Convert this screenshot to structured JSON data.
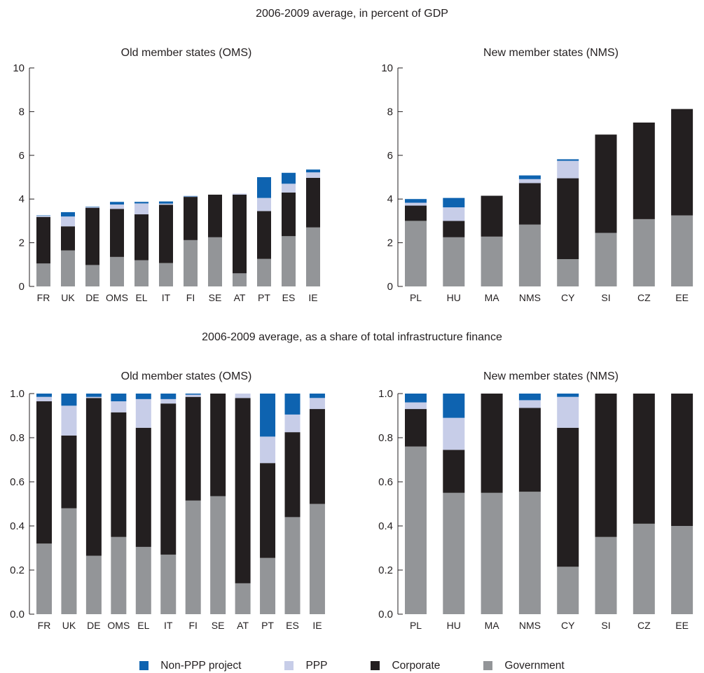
{
  "section_titles": {
    "top": "2006-2009 average, in percent of GDP",
    "bottom": "2006-2009 average, as a share of total infrastructure finance"
  },
  "series": [
    {
      "key": "government",
      "name": "Government",
      "color": "#939598"
    },
    {
      "key": "corporate",
      "name": "Corporate",
      "color": "#231f20"
    },
    {
      "key": "ppp",
      "name": "PPP",
      "color": "#c7cde8"
    },
    {
      "key": "nonppp",
      "name": "Non-PPP project",
      "color": "#0e63b0"
    }
  ],
  "legend_order": [
    "nonppp",
    "ppp",
    "corporate",
    "government"
  ],
  "chart_data": [
    {
      "type": "bar",
      "stacked": true,
      "title": "Old member states (OMS)",
      "ylim": [
        0,
        10
      ],
      "yticks": [
        "0",
        "2",
        "4",
        "6",
        "8",
        "10"
      ],
      "categories": [
        "FR",
        "UK",
        "DE",
        "OMS",
        "EL",
        "IT",
        "FI",
        "SE",
        "AT",
        "PT",
        "ES",
        "IE"
      ],
      "series": [
        {
          "name": "Government",
          "values": [
            1.05,
            1.65,
            0.98,
            1.35,
            1.2,
            1.07,
            2.12,
            2.25,
            0.6,
            1.26,
            2.3,
            2.7
          ]
        },
        {
          "name": "Corporate",
          "values": [
            2.13,
            1.1,
            2.62,
            2.2,
            2.1,
            2.67,
            1.98,
            1.95,
            3.6,
            2.19,
            2.0,
            2.27
          ]
        },
        {
          "name": "PPP",
          "values": [
            0.05,
            0.45,
            0.03,
            0.2,
            0.5,
            0.05,
            0.02,
            0.0,
            0.05,
            0.6,
            0.4,
            0.25
          ]
        },
        {
          "name": "Non-PPP project",
          "values": [
            0.02,
            0.2,
            0.02,
            0.12,
            0.07,
            0.1,
            0.02,
            0.0,
            0.0,
            0.95,
            0.5,
            0.13
          ]
        }
      ]
    },
    {
      "type": "bar",
      "stacked": true,
      "title": "New member states (NMS)",
      "ylim": [
        0,
        10
      ],
      "yticks": [
        "0",
        "2",
        "4",
        "6",
        "8",
        "10"
      ],
      "categories": [
        "PL",
        "HU",
        "MA",
        "NMS",
        "CY",
        "SI",
        "CZ",
        "EE"
      ],
      "series": [
        {
          "name": "Government",
          "values": [
            3.0,
            2.25,
            2.28,
            2.83,
            1.25,
            2.45,
            3.08,
            3.25
          ]
        },
        {
          "name": "Corporate",
          "values": [
            0.7,
            0.75,
            1.87,
            1.9,
            3.7,
            4.5,
            4.42,
            4.87
          ]
        },
        {
          "name": "PPP",
          "values": [
            0.13,
            0.62,
            0.0,
            0.18,
            0.8,
            0.0,
            0.0,
            0.0
          ]
        },
        {
          "name": "Non-PPP project",
          "values": [
            0.17,
            0.43,
            0.0,
            0.17,
            0.07,
            0.0,
            0.0,
            0.0
          ]
        }
      ]
    },
    {
      "type": "bar",
      "stacked": true,
      "title": "Old member states (OMS)",
      "ylim": [
        0,
        1
      ],
      "yticks": [
        "0.0",
        "0.2",
        "0.4",
        "0.6",
        "0.8",
        "1.0"
      ],
      "categories": [
        "FR",
        "UK",
        "DE",
        "OMS",
        "EL",
        "IT",
        "FI",
        "SE",
        "AT",
        "PT",
        "ES",
        "IE"
      ],
      "series": [
        {
          "name": "Government",
          "values": [
            0.32,
            0.48,
            0.265,
            0.35,
            0.305,
            0.27,
            0.515,
            0.535,
            0.14,
            0.255,
            0.44,
            0.5
          ]
        },
        {
          "name": "Corporate",
          "values": [
            0.645,
            0.33,
            0.715,
            0.565,
            0.54,
            0.685,
            0.47,
            0.465,
            0.84,
            0.43,
            0.385,
            0.43
          ]
        },
        {
          "name": "PPP",
          "values": [
            0.02,
            0.135,
            0.005,
            0.05,
            0.13,
            0.02,
            0.01,
            0.0,
            0.02,
            0.12,
            0.08,
            0.05
          ]
        },
        {
          "name": "Non-PPP project",
          "values": [
            0.015,
            0.055,
            0.015,
            0.035,
            0.025,
            0.025,
            0.005,
            0.0,
            0.0,
            0.195,
            0.095,
            0.02
          ]
        }
      ]
    },
    {
      "type": "bar",
      "stacked": true,
      "title": "New member states (NMS)",
      "ylim": [
        0,
        1
      ],
      "yticks": [
        "0.0",
        "0.2",
        "0.4",
        "0.6",
        "0.8",
        "1.0"
      ],
      "categories": [
        "PL",
        "HU",
        "MA",
        "NMS",
        "CY",
        "SI",
        "CZ",
        "EE"
      ],
      "series": [
        {
          "name": "Government",
          "values": [
            0.76,
            0.55,
            0.55,
            0.555,
            0.215,
            0.35,
            0.41,
            0.4
          ]
        },
        {
          "name": "Corporate",
          "values": [
            0.17,
            0.195,
            0.45,
            0.38,
            0.63,
            0.65,
            0.59,
            0.6
          ]
        },
        {
          "name": "PPP",
          "values": [
            0.03,
            0.145,
            0.0,
            0.035,
            0.14,
            0.0,
            0.0,
            0.0
          ]
        },
        {
          "name": "Non-PPP project",
          "values": [
            0.04,
            0.11,
            0.0,
            0.03,
            0.015,
            0.0,
            0.0,
            0.0
          ]
        }
      ]
    }
  ]
}
